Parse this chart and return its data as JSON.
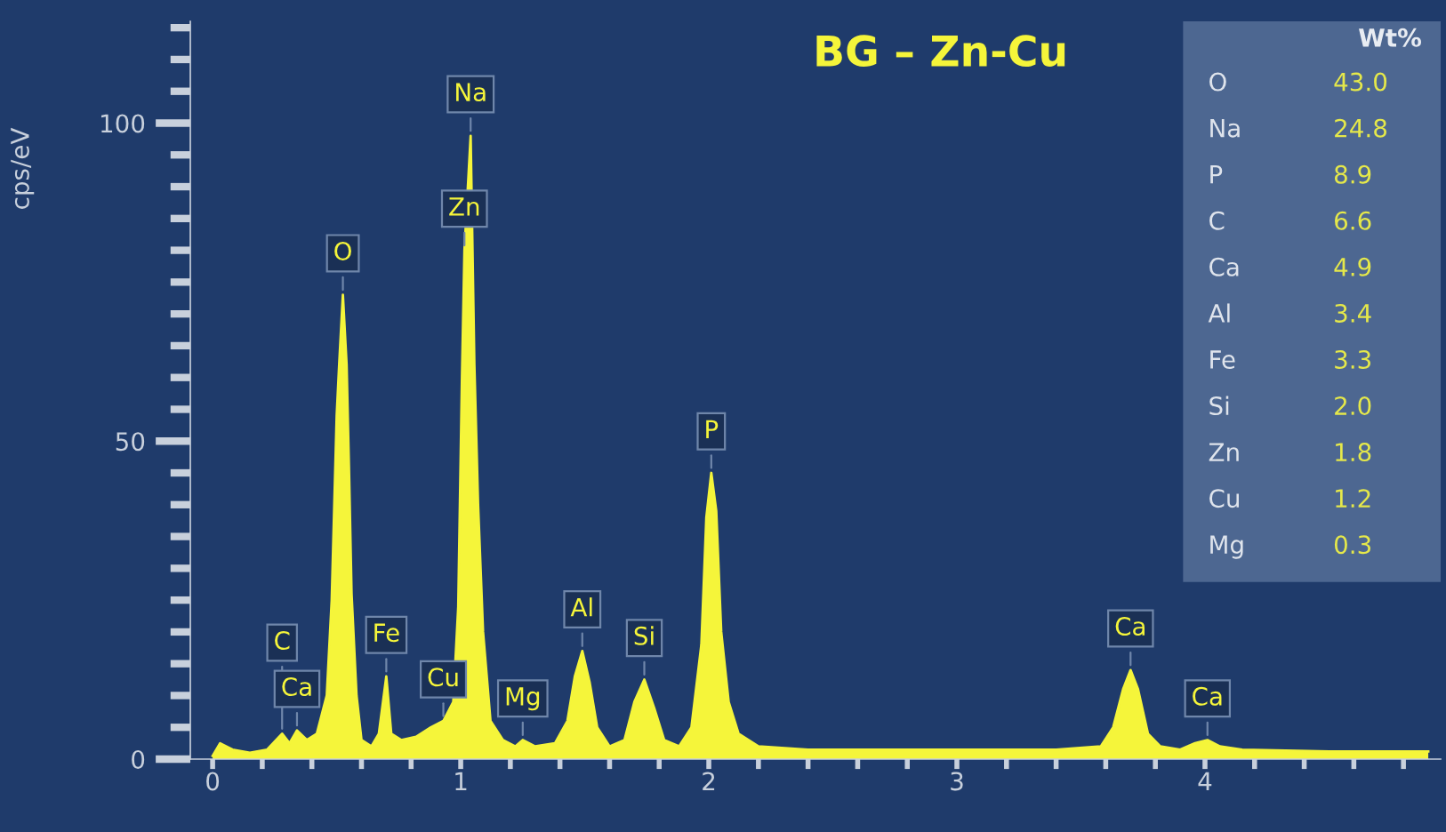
{
  "chart_data": {
    "type": "area",
    "title": "BG – Zn-Cu",
    "ylabel": "cps/eV",
    "series": [
      {
        "color": "#f5f53a",
        "x": [
          0.0,
          0.03,
          0.08,
          0.15,
          0.22,
          0.28,
          0.31,
          0.34,
          0.38,
          0.42,
          0.46,
          0.48,
          0.5,
          0.51,
          0.525,
          0.54,
          0.55,
          0.56,
          0.58,
          0.6,
          0.64,
          0.67,
          0.7,
          0.72,
          0.76,
          0.82,
          0.88,
          0.93,
          0.97,
          0.99,
          1.005,
          1.015,
          1.04,
          1.055,
          1.07,
          1.09,
          1.12,
          1.17,
          1.22,
          1.25,
          1.3,
          1.38,
          1.43,
          1.46,
          1.49,
          1.52,
          1.55,
          1.6,
          1.66,
          1.7,
          1.74,
          1.78,
          1.82,
          1.88,
          1.93,
          1.97,
          1.99,
          2.01,
          2.03,
          2.05,
          2.08,
          2.12,
          2.2,
          2.4,
          2.8,
          3.4,
          3.58,
          3.63,
          3.67,
          3.7,
          3.73,
          3.77,
          3.82,
          3.9,
          3.96,
          4.01,
          4.06,
          4.15,
          4.5,
          4.9
        ],
        "values": [
          0.5,
          2.5,
          1.5,
          1,
          1.5,
          4,
          2.5,
          4.5,
          3,
          4,
          10,
          25,
          54,
          62,
          73,
          62,
          45,
          26,
          10,
          3,
          2,
          4,
          13,
          4,
          3,
          3.5,
          5,
          6,
          9,
          24,
          60,
          80,
          98,
          62,
          40,
          20,
          6,
          3,
          2,
          3,
          2,
          2.5,
          6,
          13,
          17,
          12,
          5,
          2,
          3,
          9,
          12.5,
          8,
          3,
          2,
          5,
          18,
          38,
          45,
          39,
          20,
          9,
          4,
          2,
          1.5,
          1.5,
          1.5,
          2,
          5,
          11,
          14,
          11,
          4,
          2,
          1.5,
          2.5,
          3,
          2,
          1.5,
          1.2,
          1.2
        ]
      }
    ],
    "xlim": [
      -0.09,
      4.95
    ],
    "ylim": [
      0,
      116
    ],
    "xticks": [
      0,
      {
        "value": 0.2,
        "label": null
      },
      {
        "value": 0.4,
        "label": null
      },
      {
        "value": 0.6,
        "label": null
      },
      {
        "value": 0.8,
        "label": null
      },
      1,
      {
        "value": 1.2,
        "label": null
      },
      {
        "value": 1.4,
        "label": null
      },
      {
        "value": 1.6,
        "label": null
      },
      {
        "value": 1.8,
        "label": null
      },
      2,
      {
        "value": 2.2,
        "label": null
      },
      {
        "value": 2.4,
        "label": null
      },
      {
        "value": 2.6,
        "label": null
      },
      {
        "value": 2.8,
        "label": null
      },
      3,
      {
        "value": 3.2,
        "label": null
      },
      {
        "value": 3.4,
        "label": null
      },
      {
        "value": 3.6,
        "label": null
      },
      {
        "value": 3.8,
        "label": null
      },
      4,
      {
        "value": 4.2,
        "label": null
      },
      {
        "value": 4.4,
        "label": null
      },
      {
        "value": 4.6,
        "label": null
      },
      {
        "value": 4.8,
        "label": null
      }
    ],
    "yticks": [
      0,
      {
        "value": 5,
        "label": null
      },
      {
        "value": 10,
        "label": null
      },
      {
        "value": 15,
        "label": null
      },
      {
        "value": 20,
        "label": null
      },
      {
        "value": 25,
        "label": null
      },
      {
        "value": 30,
        "label": null
      },
      {
        "value": 35,
        "label": null
      },
      {
        "value": 40,
        "label": null
      },
      {
        "value": 45,
        "label": null
      },
      50,
      {
        "value": 55,
        "label": null
      },
      {
        "value": 60,
        "label": null
      },
      {
        "value": 65,
        "label": null
      },
      {
        "value": 70,
        "label": null
      },
      {
        "value": 75,
        "label": null
      },
      {
        "value": 80,
        "label": null
      },
      {
        "value": 85,
        "label": null
      },
      {
        "value": 90,
        "label": null
      },
      {
        "value": 95,
        "label": null
      },
      100,
      {
        "value": 105,
        "label": null
      },
      {
        "value": 110,
        "label": null
      },
      {
        "value": 115,
        "label": null
      }
    ],
    "grid": false,
    "legend": false,
    "annotations": [
      {
        "text": "C",
        "x": 0.28,
        "y": 4
      },
      {
        "text": "Ca",
        "x": 0.34,
        "y": 4.5
      },
      {
        "text": "O",
        "x": 0.525,
        "y": 73
      },
      {
        "text": "Fe",
        "x": 0.7,
        "y": 13
      },
      {
        "text": "Cu",
        "x": 0.93,
        "y": 6
      },
      {
        "text": "Zn",
        "x": 1.015,
        "y": 80
      },
      {
        "text": "Na",
        "x": 1.04,
        "y": 98
      },
      {
        "text": "Mg",
        "x": 1.25,
        "y": 3
      },
      {
        "text": "Al",
        "x": 1.49,
        "y": 17
      },
      {
        "text": "Si",
        "x": 1.74,
        "y": 12.5
      },
      {
        "text": "P",
        "x": 2.01,
        "y": 45
      },
      {
        "text": "Ca",
        "x": 3.7,
        "y": 14
      },
      {
        "text": "Ca",
        "x": 4.01,
        "y": 3
      },
      "Wt%",
      "O",
      "43.0",
      "Na",
      "24.8",
      "P",
      "8.9",
      "C",
      "6.6",
      "Ca",
      "4.9",
      "Al",
      "3.4",
      "Fe",
      "3.3",
      "Si",
      "2.0",
      "Zn",
      "1.8",
      "Cu",
      "1.2",
      "Mg",
      "0.3"
    ]
  }
}
